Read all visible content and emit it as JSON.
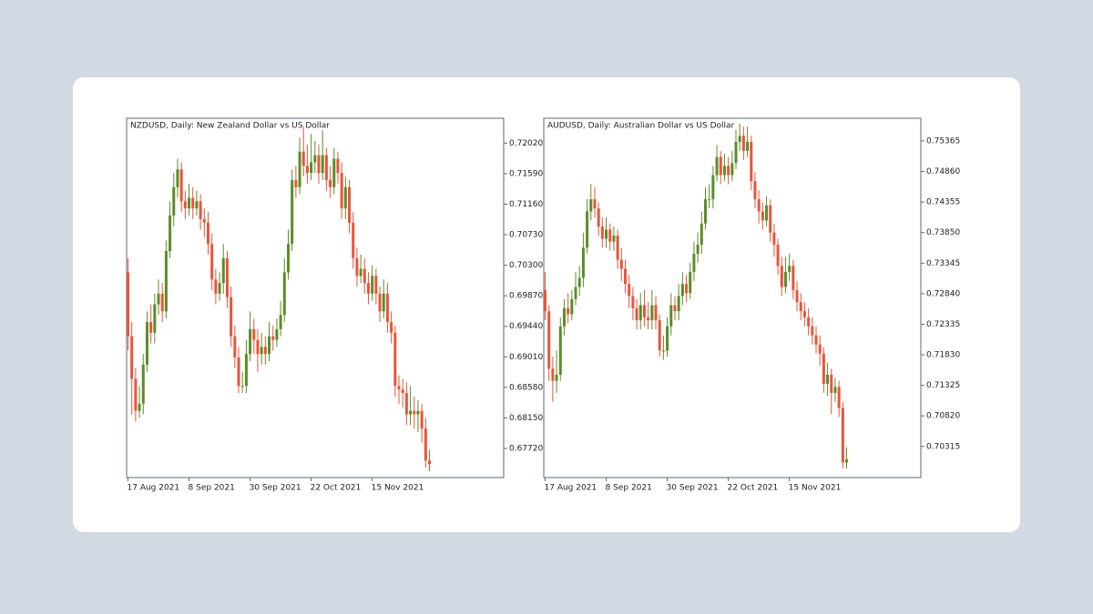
{
  "chart_data": [
    {
      "type": "candlestick",
      "title": "NZDUSD, Daily:  New Zealand Dollar vs US Dollar",
      "up_color": "#5b8c2a",
      "down_color": "#e8553a",
      "categories": [
        "17 Aug 2021",
        null,
        null,
        null,
        null,
        null,
        null,
        null,
        null,
        null,
        null,
        null,
        null,
        null,
        null,
        null,
        "8 Sep 2021",
        null,
        null,
        null,
        null,
        null,
        null,
        null,
        null,
        null,
        null,
        null,
        null,
        null,
        null,
        null,
        "30 Sep 2021",
        null,
        null,
        null,
        null,
        null,
        null,
        null,
        null,
        null,
        null,
        null,
        null,
        null,
        null,
        null,
        "22 Oct 2021",
        null,
        null,
        null,
        null,
        null,
        null,
        null,
        null,
        null,
        null,
        null,
        null,
        null,
        null,
        null,
        "15 Nov 2021",
        null,
        null,
        null,
        null,
        null,
        null,
        null,
        null,
        null,
        null,
        null,
        null,
        null,
        null,
        null
      ],
      "open": [
        0.702,
        0.693,
        0.687,
        0.6825,
        0.6835,
        0.689,
        0.695,
        0.6935,
        0.6975,
        0.699,
        0.6965,
        0.705,
        0.71,
        0.714,
        0.7165,
        0.712,
        0.711,
        0.7125,
        0.711,
        0.712,
        0.7095,
        0.709,
        0.706,
        0.701,
        0.699,
        0.7005,
        0.704,
        0.6985,
        0.693,
        0.69,
        0.686,
        0.686,
        0.6905,
        0.694,
        0.6925,
        0.6905,
        0.6915,
        0.6905,
        0.693,
        0.6925,
        0.694,
        0.696,
        0.702,
        0.706,
        0.715,
        0.714,
        0.719,
        0.717,
        0.716,
        0.7175,
        0.7185,
        0.716,
        0.7185,
        0.715,
        0.714,
        0.718,
        0.716,
        0.711,
        0.714,
        0.709,
        0.704,
        0.7015,
        0.7025,
        0.7005,
        0.699,
        0.7015,
        0.699,
        0.6965,
        0.699,
        0.695,
        0.6935,
        0.686,
        0.6855,
        0.685,
        0.682,
        0.6825,
        0.682,
        0.6825,
        0.68,
        0.6755
      ],
      "high": [
        0.704,
        0.695,
        0.6885,
        0.686,
        0.6905,
        0.6965,
        0.6975,
        0.699,
        0.701,
        0.7005,
        0.7065,
        0.712,
        0.716,
        0.718,
        0.7175,
        0.7135,
        0.7145,
        0.714,
        0.7135,
        0.713,
        0.711,
        0.7105,
        0.7075,
        0.7025,
        0.702,
        0.706,
        0.705,
        0.7,
        0.6945,
        0.6915,
        0.688,
        0.6925,
        0.6965,
        0.6955,
        0.694,
        0.6935,
        0.693,
        0.695,
        0.6945,
        0.6955,
        0.698,
        0.704,
        0.708,
        0.7165,
        0.717,
        0.721,
        0.7225,
        0.72,
        0.7215,
        0.7205,
        0.72,
        0.722,
        0.7195,
        0.717,
        0.7195,
        0.719,
        0.7175,
        0.7155,
        0.715,
        0.7105,
        0.7055,
        0.7045,
        0.704,
        0.702,
        0.703,
        0.7025,
        0.7,
        0.701,
        0.7005,
        0.6965,
        0.6945,
        0.6875,
        0.687,
        0.6865,
        0.686,
        0.6845,
        0.684,
        0.6835,
        0.6815,
        0.677
      ],
      "low": [
        0.691,
        0.682,
        0.681,
        0.6815,
        0.682,
        0.688,
        0.692,
        0.692,
        0.696,
        0.695,
        0.6955,
        0.704,
        0.7085,
        0.7125,
        0.7105,
        0.7095,
        0.71,
        0.7095,
        0.71,
        0.708,
        0.707,
        0.7045,
        0.6995,
        0.6975,
        0.698,
        0.699,
        0.697,
        0.6915,
        0.6885,
        0.685,
        0.685,
        0.685,
        0.6895,
        0.6905,
        0.688,
        0.689,
        0.689,
        0.6895,
        0.691,
        0.6915,
        0.693,
        0.695,
        0.701,
        0.705,
        0.7125,
        0.713,
        0.7155,
        0.7145,
        0.715,
        0.716,
        0.7145,
        0.715,
        0.7135,
        0.7125,
        0.713,
        0.7145,
        0.7095,
        0.7095,
        0.7075,
        0.7025,
        0.7,
        0.7005,
        0.699,
        0.6975,
        0.698,
        0.6975,
        0.695,
        0.6955,
        0.6935,
        0.692,
        0.6845,
        0.6835,
        0.683,
        0.6805,
        0.6805,
        0.68,
        0.6795,
        0.678,
        0.6745,
        0.674
      ],
      "close": [
        0.693,
        0.687,
        0.6825,
        0.6835,
        0.689,
        0.695,
        0.6935,
        0.6975,
        0.699,
        0.6965,
        0.705,
        0.71,
        0.714,
        0.7165,
        0.712,
        0.711,
        0.7125,
        0.711,
        0.712,
        0.7095,
        0.709,
        0.706,
        0.701,
        0.699,
        0.7005,
        0.704,
        0.6985,
        0.693,
        0.69,
        0.686,
        0.686,
        0.6905,
        0.694,
        0.6925,
        0.6905,
        0.6915,
        0.6905,
        0.693,
        0.6925,
        0.694,
        0.696,
        0.702,
        0.706,
        0.715,
        0.714,
        0.719,
        0.717,
        0.716,
        0.7175,
        0.7185,
        0.716,
        0.7185,
        0.715,
        0.714,
        0.718,
        0.716,
        0.711,
        0.714,
        0.709,
        0.704,
        0.7015,
        0.7025,
        0.7005,
        0.699,
        0.7015,
        0.699,
        0.6965,
        0.699,
        0.695,
        0.6935,
        0.686,
        0.6855,
        0.685,
        0.682,
        0.6825,
        0.682,
        0.6825,
        0.68,
        0.6755,
        0.675
      ],
      "ylim": [
        0.6731,
        0.7237
      ],
      "yticks": [
        {
          "value": 0.7202,
          "label": "0.72020"
        },
        {
          "value": 0.7159,
          "label": "0.71590"
        },
        {
          "value": 0.7116,
          "label": "0.71160"
        },
        {
          "value": 0.7073,
          "label": "0.70730"
        },
        {
          "value": 0.703,
          "label": "0.70300"
        },
        {
          "value": 0.6987,
          "label": "0.69870"
        },
        {
          "value": 0.6944,
          "label": "0.69440"
        },
        {
          "value": 0.6901,
          "label": "0.69010"
        },
        {
          "value": 0.6858,
          "label": "0.68580"
        },
        {
          "value": 0.6815,
          "label": "0.68150"
        },
        {
          "value": 0.6772,
          "label": "0.67720"
        }
      ]
    },
    {
      "type": "candlestick",
      "title": "AUDUSD, Daily:  Australian Dollar vs US Dollar",
      "up_color": "#5b8c2a",
      "down_color": "#e8553a",
      "categories": [
        "17 Aug 2021",
        null,
        null,
        null,
        null,
        null,
        null,
        null,
        null,
        null,
        null,
        null,
        null,
        null,
        null,
        null,
        "8 Sep 2021",
        null,
        null,
        null,
        null,
        null,
        null,
        null,
        null,
        null,
        null,
        null,
        null,
        null,
        null,
        null,
        "30 Sep 2021",
        null,
        null,
        null,
        null,
        null,
        null,
        null,
        null,
        null,
        null,
        null,
        null,
        null,
        null,
        null,
        "22 Oct 2021",
        null,
        null,
        null,
        null,
        null,
        null,
        null,
        null,
        null,
        null,
        null,
        null,
        null,
        null,
        null,
        "15 Nov 2021",
        null,
        null,
        null,
        null,
        null,
        null,
        null,
        null,
        null,
        null,
        null,
        null,
        null,
        null,
        null
      ],
      "open": [
        0.729,
        0.7255,
        0.716,
        0.714,
        0.715,
        0.723,
        0.726,
        0.725,
        0.7275,
        0.7295,
        0.731,
        0.736,
        0.742,
        0.744,
        0.7425,
        0.7395,
        0.7375,
        0.739,
        0.737,
        0.738,
        0.734,
        0.7325,
        0.73,
        0.728,
        0.726,
        0.724,
        0.7265,
        0.7245,
        0.724,
        0.7265,
        0.724,
        0.719,
        0.719,
        0.723,
        0.7265,
        0.7255,
        0.728,
        0.73,
        0.7285,
        0.732,
        0.735,
        0.7365,
        0.74,
        0.744,
        0.744,
        0.748,
        0.751,
        0.748,
        0.7495,
        0.748,
        0.75,
        0.7535,
        0.7545,
        0.752,
        0.7535,
        0.747,
        0.744,
        0.742,
        0.7405,
        0.743,
        0.7385,
        0.7365,
        0.733,
        0.7295,
        0.732,
        0.733,
        0.729,
        0.727,
        0.7255,
        0.7245,
        0.723,
        0.7215,
        0.72,
        0.7185,
        0.7135,
        0.715,
        0.712,
        0.713,
        0.7095,
        0.7005
      ],
      "high": [
        0.732,
        0.7265,
        0.718,
        0.719,
        0.7245,
        0.7275,
        0.7285,
        0.729,
        0.732,
        0.733,
        0.7385,
        0.744,
        0.7465,
        0.746,
        0.7435,
        0.741,
        0.741,
        0.74,
        0.7395,
        0.739,
        0.736,
        0.734,
        0.7315,
        0.7295,
        0.7275,
        0.7285,
        0.729,
        0.727,
        0.729,
        0.728,
        0.725,
        0.7215,
        0.7245,
        0.7285,
        0.728,
        0.73,
        0.732,
        0.7315,
        0.7335,
        0.737,
        0.7385,
        0.742,
        0.746,
        0.7465,
        0.7495,
        0.753,
        0.752,
        0.7515,
        0.751,
        0.752,
        0.7555,
        0.7565,
        0.756,
        0.756,
        0.7545,
        0.7485,
        0.7455,
        0.7435,
        0.7445,
        0.744,
        0.74,
        0.7375,
        0.7345,
        0.7345,
        0.735,
        0.734,
        0.7305,
        0.7285,
        0.727,
        0.726,
        0.7245,
        0.723,
        0.7215,
        0.7195,
        0.717,
        0.716,
        0.7145,
        0.714,
        0.7105,
        0.703
      ],
      "low": [
        0.724,
        0.714,
        0.7105,
        0.712,
        0.714,
        0.7215,
        0.7235,
        0.724,
        0.7265,
        0.728,
        0.7295,
        0.735,
        0.7405,
        0.741,
        0.738,
        0.736,
        0.736,
        0.7355,
        0.7355,
        0.7325,
        0.7305,
        0.7285,
        0.726,
        0.724,
        0.7225,
        0.7225,
        0.723,
        0.7225,
        0.7225,
        0.7225,
        0.718,
        0.7175,
        0.718,
        0.7215,
        0.724,
        0.724,
        0.7265,
        0.727,
        0.7275,
        0.7305,
        0.7335,
        0.735,
        0.739,
        0.7425,
        0.7425,
        0.747,
        0.7465,
        0.747,
        0.7465,
        0.747,
        0.749,
        0.752,
        0.7505,
        0.751,
        0.7455,
        0.7425,
        0.74,
        0.739,
        0.7395,
        0.737,
        0.7345,
        0.7315,
        0.728,
        0.7285,
        0.7305,
        0.7275,
        0.7255,
        0.724,
        0.723,
        0.7215,
        0.72,
        0.7185,
        0.7165,
        0.712,
        0.7115,
        0.7085,
        0.7105,
        0.708,
        0.6995,
        0.6995
      ],
      "close": [
        0.7255,
        0.716,
        0.714,
        0.715,
        0.723,
        0.726,
        0.725,
        0.7275,
        0.7295,
        0.731,
        0.736,
        0.742,
        0.744,
        0.7425,
        0.7395,
        0.7375,
        0.739,
        0.737,
        0.738,
        0.734,
        0.7325,
        0.73,
        0.728,
        0.726,
        0.724,
        0.7265,
        0.7245,
        0.724,
        0.7265,
        0.724,
        0.719,
        0.719,
        0.723,
        0.7265,
        0.7255,
        0.728,
        0.73,
        0.7285,
        0.732,
        0.735,
        0.7365,
        0.74,
        0.744,
        0.744,
        0.748,
        0.751,
        0.748,
        0.7495,
        0.748,
        0.75,
        0.7535,
        0.7545,
        0.752,
        0.7535,
        0.747,
        0.744,
        0.742,
        0.7405,
        0.743,
        0.7385,
        0.7365,
        0.733,
        0.7295,
        0.732,
        0.733,
        0.729,
        0.727,
        0.7255,
        0.7245,
        0.723,
        0.7215,
        0.72,
        0.7185,
        0.7135,
        0.715,
        0.712,
        0.713,
        0.7095,
        0.7005,
        0.701
      ],
      "ylim": [
        0.698,
        0.7574
      ],
      "yticks": [
        {
          "value": 0.75365,
          "label": "0.75365"
        },
        {
          "value": 0.7486,
          "label": "0.74860"
        },
        {
          "value": 0.74355,
          "label": "0.74355"
        },
        {
          "value": 0.7385,
          "label": "0.73850"
        },
        {
          "value": 0.73345,
          "label": "0.73345"
        },
        {
          "value": 0.7284,
          "label": "0.72840"
        },
        {
          "value": 0.72335,
          "label": "0.72335"
        },
        {
          "value": 0.7183,
          "label": "0.71830"
        },
        {
          "value": 0.71325,
          "label": "0.71325"
        },
        {
          "value": 0.7082,
          "label": "0.70820"
        },
        {
          "value": 0.70315,
          "label": "0.70315"
        }
      ]
    }
  ]
}
